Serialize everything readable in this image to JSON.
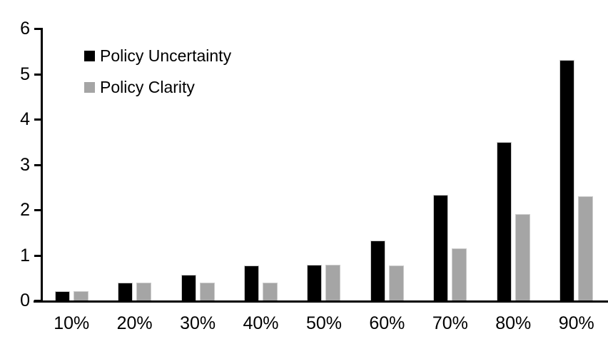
{
  "chart_data": {
    "type": "bar",
    "title": "",
    "categories": [
      "10%",
      "20%",
      "30%",
      "40%",
      "50%",
      "60%",
      "70%",
      "80%",
      "90%"
    ],
    "series": [
      {
        "name": "Policy Uncertainty",
        "color": "#000000",
        "values": [
          0.2,
          0.4,
          0.57,
          0.77,
          0.78,
          1.33,
          2.33,
          3.5,
          5.3
        ]
      },
      {
        "name": "Policy Clarity",
        "color": "#a5a5a5",
        "values": [
          0.2,
          0.4,
          0.4,
          0.4,
          0.78,
          0.77,
          1.15,
          1.9,
          2.3
        ]
      }
    ],
    "xlabel": "",
    "ylabel": "",
    "ylim": [
      0,
      6
    ],
    "yticks": [
      0,
      1,
      2,
      3,
      4,
      5,
      6
    ],
    "grid": false,
    "legend_position": "top-left",
    "axis_color": "#000000",
    "background_color": "#ffffff"
  }
}
